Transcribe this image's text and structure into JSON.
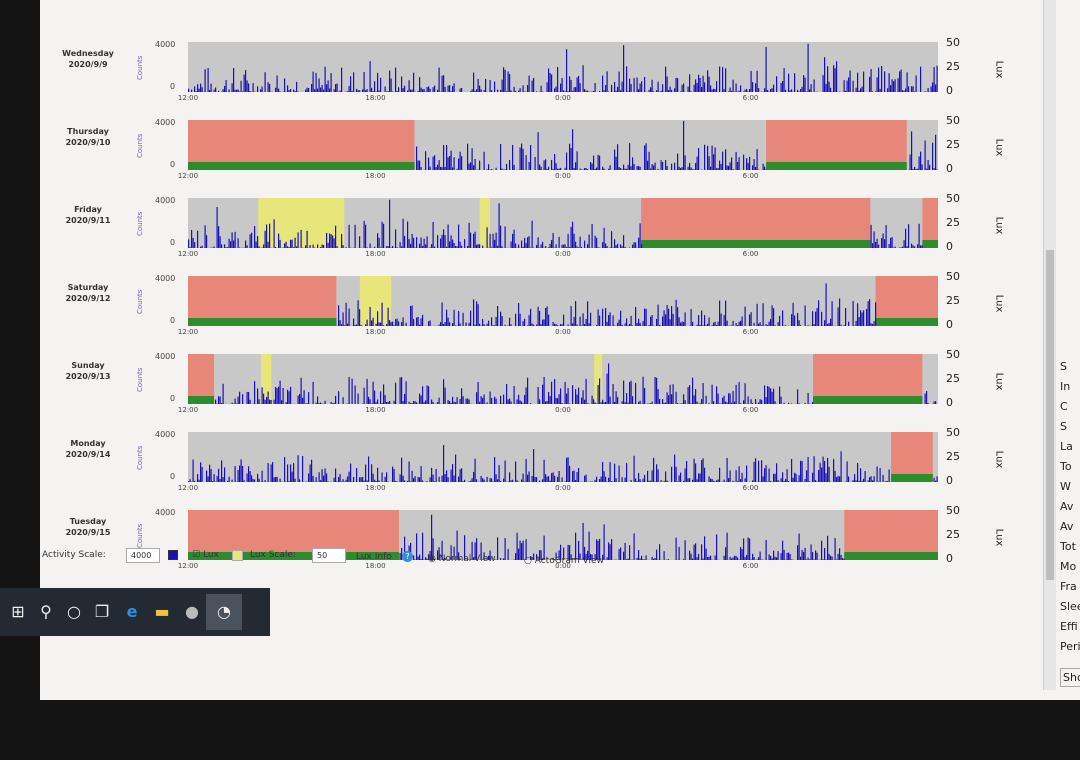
{
  "axis": {
    "counts_label": "Counts",
    "counts_max": "4000",
    "counts_min": "0",
    "lux_ticks": [
      "50",
      "25",
      "0"
    ],
    "lux_label": "Lux",
    "time_ticks": [
      "12:00",
      "18:00",
      "0:00",
      "6:00"
    ]
  },
  "colors": {
    "activity": "#1a10b8",
    "background": "#c8c8c8",
    "sleep": "#e6877a",
    "lux": "#2e8b2e",
    "light": "#e6e67a"
  },
  "days": [
    {
      "day": "Wednesday",
      "date": "2020/9/9",
      "segments": []
    },
    {
      "day": "Thursday",
      "date": "2020/9/10",
      "segments": [
        {
          "type": "sleep",
          "start": "12:00",
          "end": "19:15"
        },
        {
          "type": "sleep",
          "start": "6:30",
          "end": "11:00"
        }
      ]
    },
    {
      "day": "Friday",
      "date": "2020/9/11",
      "segments": [
        {
          "type": "light",
          "start": "14:15",
          "end": "17:00"
        },
        {
          "type": "light",
          "start": "21:20",
          "end": "21:40"
        },
        {
          "type": "sleep",
          "start": "2:30",
          "end": "9:50"
        },
        {
          "type": "sleep",
          "start": "11:30",
          "end": "12:00"
        }
      ]
    },
    {
      "day": "Saturday",
      "date": "2020/9/12",
      "segments": [
        {
          "type": "sleep",
          "start": "12:00",
          "end": "16:45"
        },
        {
          "type": "light",
          "start": "17:30",
          "end": "18:30"
        },
        {
          "type": "sleep",
          "start": "10:00",
          "end": "12:00"
        }
      ]
    },
    {
      "day": "Sunday",
      "date": "2020/9/13",
      "segments": [
        {
          "type": "sleep",
          "start": "12:00",
          "end": "12:50"
        },
        {
          "type": "light",
          "start": "14:20",
          "end": "14:40"
        },
        {
          "type": "light",
          "start": "1:00",
          "end": "1:15"
        },
        {
          "type": "sleep",
          "start": "8:00",
          "end": "11:30"
        }
      ]
    },
    {
      "day": "Monday",
      "date": "2020/9/14",
      "segments": [
        {
          "type": "sleep",
          "start": "10:30",
          "end": "11:50"
        }
      ]
    },
    {
      "day": "Tuesday",
      "date": "2020/9/15",
      "segments": [
        {
          "type": "sleep",
          "start": "12:00",
          "end": "18:45"
        },
        {
          "type": "sleep",
          "start": "9:00",
          "end": "12:00"
        }
      ]
    }
  ],
  "controls": {
    "activity_scale_label": "Activity Scale:",
    "activity_scale_value": "4000",
    "lux_checkbox_label": "Lux",
    "lux_checked": true,
    "lux_scale_label": "Lux Scale:",
    "lux_scale_value": "50",
    "lux_info_label": "Lux Info",
    "normal_view_label": "Normal View",
    "actogram_view_label": "ActoGram View",
    "selected_view": "Normal View"
  },
  "taskbar": {
    "icons": [
      "windows-start-icon",
      "search-icon",
      "cortana-icon",
      "task-view-icon",
      "edge-icon",
      "file-explorer-icon",
      "app-icon",
      "actigraphy-app-icon"
    ]
  },
  "right_panel": {
    "labels": [
      "S",
      "In",
      "C",
      "S",
      "La",
      "To",
      "W",
      "Av",
      "Av",
      "Tot",
      "Mo",
      "Fra",
      "Slee",
      "Effi",
      "Peri"
    ],
    "button": "Show"
  }
}
